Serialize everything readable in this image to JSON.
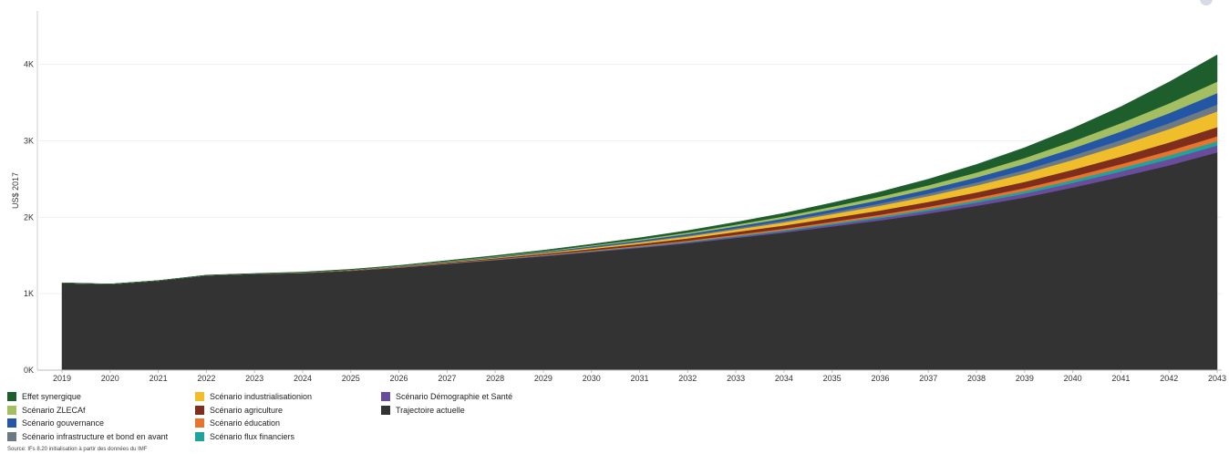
{
  "chart_data": {
    "type": "area",
    "stacked": true,
    "ylabel": "US$ 2017",
    "xlabel": "",
    "ylim": [
      0,
      4700
    ],
    "y_ticks": [
      0,
      1000,
      2000,
      3000,
      4000
    ],
    "y_tick_labels": [
      "0K",
      "1K",
      "2K",
      "3K",
      "4K"
    ],
    "grid": true,
    "legend_position": "bottom-left",
    "categories": [
      "2019",
      "2020",
      "2021",
      "2022",
      "2023",
      "2024",
      "2025",
      "2026",
      "2027",
      "2028",
      "2029",
      "2030",
      "2031",
      "2032",
      "2033",
      "2034",
      "2035",
      "2036",
      "2037",
      "2038",
      "2039",
      "2040",
      "2041",
      "2042",
      "2043"
    ],
    "series": [
      {
        "name": "Trajectoire actuelle",
        "color": "#333333",
        "values": [
          1140,
          1125,
          1170,
          1240,
          1260,
          1270,
          1300,
          1340,
          1390,
          1440,
          1490,
          1545,
          1600,
          1660,
          1730,
          1800,
          1880,
          1960,
          2050,
          2150,
          2260,
          2390,
          2530,
          2680,
          2850
        ]
      },
      {
        "name": "Scénario Démographie et Santé",
        "color": "#6a4c9c",
        "values": [
          0,
          0,
          0,
          0,
          0,
          1,
          1,
          2,
          3,
          4,
          6,
          8,
          10,
          13,
          16,
          20,
          25,
          30,
          36,
          43,
          51,
          60,
          70,
          80,
          90
        ]
      },
      {
        "name": "Scénario flux financiers",
        "color": "#1fa39a",
        "values": [
          0,
          0,
          0,
          0,
          0,
          1,
          1,
          2,
          3,
          4,
          5,
          6,
          8,
          10,
          12,
          14,
          17,
          20,
          24,
          28,
          33,
          38,
          44,
          50,
          55
        ]
      },
      {
        "name": "Scénario éducation",
        "color": "#e8732c",
        "values": [
          0,
          0,
          0,
          0,
          0,
          1,
          1,
          2,
          3,
          4,
          5,
          7,
          9,
          11,
          14,
          17,
          20,
          24,
          28,
          33,
          39,
          45,
          52,
          60,
          65
        ]
      },
      {
        "name": "Scénario agriculture",
        "color": "#7d2e1d",
        "values": [
          0,
          0,
          0,
          0,
          1,
          2,
          4,
          6,
          9,
          12,
          16,
          20,
          25,
          30,
          36,
          42,
          49,
          56,
          64,
          72,
          81,
          90,
          99,
          109,
          120
        ]
      },
      {
        "name": "Scénario industrialisationion",
        "color": "#f0be2b",
        "values": [
          0,
          0,
          0,
          0,
          0,
          1,
          2,
          3,
          5,
          7,
          10,
          14,
          19,
          25,
          32,
          40,
          50,
          62,
          75,
          90,
          108,
          128,
          150,
          175,
          205
        ]
      },
      {
        "name": "Scénario infrastructure et bond en avant",
        "color": "#6c7a86",
        "values": [
          0,
          0,
          0,
          0,
          0,
          1,
          1,
          2,
          3,
          4,
          6,
          8,
          10,
          13,
          16,
          20,
          24,
          29,
          34,
          40,
          48,
          57,
          67,
          78,
          90
        ]
      },
      {
        "name": "Scénario gouvernance",
        "color": "#2356a5",
        "values": [
          0,
          0,
          0,
          0,
          0,
          1,
          2,
          3,
          5,
          7,
          9,
          12,
          16,
          20,
          25,
          31,
          38,
          46,
          55,
          66,
          79,
          94,
          111,
          130,
          150
        ]
      },
      {
        "name": "Scénario ZLECAf",
        "color": "#a3bf62",
        "values": [
          0,
          0,
          0,
          0,
          0,
          1,
          2,
          3,
          4,
          6,
          8,
          11,
          14,
          18,
          23,
          29,
          36,
          44,
          53,
          64,
          77,
          92,
          109,
          128,
          150
        ]
      },
      {
        "name": "Effet synergique",
        "color": "#1d5e2c",
        "values": [
          3,
          3,
          3,
          4,
          4,
          5,
          6,
          7,
          9,
          11,
          14,
          17,
          21,
          26,
          32,
          40,
          50,
          62,
          80,
          105,
          135,
          170,
          215,
          280,
          350
        ]
      }
    ],
    "legend_columns": [
      [
        "Effet synergique",
        "Scénario ZLECAf",
        "Scénario gouvernance",
        "Scénario infrastructure et bond en avant"
      ],
      [
        "Scénario industrialisationion",
        "Scénario agriculture",
        "Scénario éducation",
        "Scénario flux financiers"
      ],
      [
        "Scénario Démographie et Santé",
        "Trajectoire actuelle"
      ]
    ]
  },
  "source": "Source: IFs 8.20 initialisation à partir des données du IMF"
}
